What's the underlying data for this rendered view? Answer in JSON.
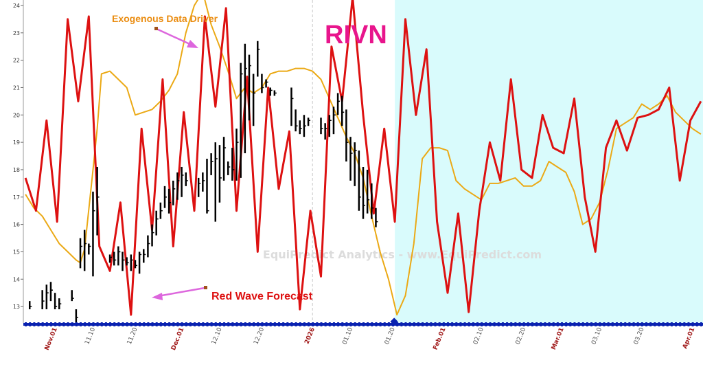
{
  "chart_data": {
    "type": "line",
    "ticker": "RIVN",
    "watermark": "EquiPredict Analytics - www.EquiPredict.com",
    "ylim": [
      12.4,
      24.2
    ],
    "yticks": [
      13,
      14,
      15,
      16,
      17,
      18,
      19,
      20,
      21,
      22,
      23,
      24
    ],
    "x_range_days": [
      -7.5,
      153.5
    ],
    "xticks": [
      {
        "label": "Nov.01",
        "day": 0,
        "major": true
      },
      {
        "label": "11.10",
        "day": 9,
        "major": false
      },
      {
        "label": "11.20",
        "day": 19,
        "major": false
      },
      {
        "label": "Dec.01",
        "day": 30,
        "major": true
      },
      {
        "label": "12.10",
        "day": 39,
        "major": false
      },
      {
        "label": "12.20",
        "day": 49,
        "major": false
      },
      {
        "label": "2026",
        "day": 61,
        "major": true
      },
      {
        "label": "01.10",
        "day": 70,
        "major": false
      },
      {
        "label": "01.20",
        "day": 80,
        "major": false
      },
      {
        "label": "Feb.01",
        "day": 92,
        "major": true
      },
      {
        "label": "02.10",
        "day": 101,
        "major": false
      },
      {
        "label": "02.20",
        "day": 111,
        "major": false
      },
      {
        "label": "Mar.01",
        "day": 120,
        "major": true
      },
      {
        "label": "03.10",
        "day": 129,
        "major": false
      },
      {
        "label": "03.20",
        "day": 139,
        "major": false
      },
      {
        "label": "Apr.01",
        "day": 151,
        "major": true
      }
    ],
    "forecast_start_day": 80.5,
    "year_divider_day": 61,
    "annotations": [
      {
        "text": "Exogenous Data Driver",
        "role": "exogenous"
      },
      {
        "text": "Red Wave Forecast",
        "role": "forecast"
      }
    ],
    "colors": {
      "red_wave": "#dd1111",
      "exogenous": "#eba915",
      "price": "#000000",
      "forecast_bg": "#d9fbfc",
      "ticker": "#e8158c",
      "arrow": "#dd66dd",
      "annotation_orange": "#ea8c10",
      "annotation_red": "#dd1111",
      "major_tick": "#a01818",
      "minor_tick": "#555555",
      "axis_marks": "#0a22b0"
    },
    "series": [
      {
        "role": "red_wave",
        "x": [
          -7,
          -4.5,
          -2,
          0.5,
          3,
          5.5,
          8,
          10.5,
          13,
          15.5,
          18,
          20.5,
          23,
          25.5,
          28,
          30.5,
          33,
          35.5,
          38,
          40.5,
          43,
          45.5,
          48,
          50.5,
          53,
          55.5,
          58,
          60.5,
          63,
          65.5,
          68,
          70.5,
          73,
          75.5,
          78,
          80.5,
          83,
          85.5,
          88,
          90.5,
          93,
          95.5,
          98,
          100.5,
          103,
          105.5,
          108,
          110.5,
          113,
          115.5,
          118,
          120.5,
          123,
          125.5,
          128,
          130.5,
          133,
          135.5,
          138,
          140.5,
          143,
          145.5,
          148,
          150.5,
          153
        ],
        "y": [
          17.7,
          16.5,
          19.8,
          16.1,
          23.5,
          20.5,
          23.6,
          15.2,
          14.3,
          16.8,
          12.7,
          19.5,
          15.8,
          21.3,
          15.2,
          20.1,
          16.5,
          23.6,
          20.3,
          23.9,
          16.5,
          21.4,
          15.0,
          21.0,
          17.3,
          19.4,
          12.9,
          16.5,
          14.1,
          22.5,
          20.5,
          24.3,
          20.0,
          16.4,
          19.5,
          16.1,
          23.5,
          20.0,
          22.4,
          16.1,
          13.5,
          16.4,
          12.8,
          16.5,
          19.0,
          17.6,
          21.3,
          18.0,
          17.7,
          20.0,
          18.8,
          18.6,
          20.6,
          17.0,
          15.0,
          18.8,
          19.8,
          18.7,
          19.9,
          20.0,
          20.2,
          21.0,
          17.6,
          19.8,
          20.5
        ]
      },
      {
        "role": "exogenous",
        "x": [
          -7,
          -5,
          -3,
          -1,
          1,
          3,
          5,
          6,
          7,
          9,
          10,
          11,
          13,
          15,
          17,
          19,
          21,
          23,
          25,
          27,
          29,
          31,
          33,
          35,
          37,
          39,
          41,
          43,
          45,
          47,
          49,
          51,
          53,
          55,
          57,
          59,
          61,
          63,
          65,
          67,
          69,
          71,
          73,
          75,
          77,
          79,
          81,
          83,
          85,
          87,
          89,
          91,
          93,
          95,
          97,
          99,
          101,
          103,
          105,
          107,
          109,
          111,
          113,
          115,
          117,
          119,
          121,
          123,
          125,
          127,
          129,
          131,
          133,
          135,
          137,
          139,
          141,
          143,
          145,
          147,
          149,
          151,
          153
        ],
        "y": [
          17.1,
          16.6,
          16.3,
          15.8,
          15.3,
          15.0,
          14.7,
          14.6,
          15.1,
          18.0,
          19.5,
          21.5,
          21.6,
          21.3,
          21.0,
          20.0,
          20.1,
          20.2,
          20.5,
          20.9,
          21.5,
          23.0,
          24.0,
          24.5,
          23.3,
          22.5,
          21.6,
          20.6,
          21.0,
          20.8,
          21.0,
          21.5,
          21.6,
          21.6,
          21.7,
          21.7,
          21.6,
          21.3,
          20.6,
          19.9,
          19.2,
          18.6,
          17.7,
          16.3,
          15.0,
          14.0,
          12.7,
          13.4,
          15.3,
          18.4,
          18.8,
          18.8,
          18.7,
          17.6,
          17.3,
          17.1,
          16.9,
          17.5,
          17.5,
          17.6,
          17.7,
          17.4,
          17.4,
          17.6,
          18.3,
          18.1,
          17.9,
          17.2,
          16.0,
          16.2,
          16.8,
          18.0,
          19.5,
          19.7,
          19.9,
          20.4,
          20.2,
          20.4,
          20.7,
          20.1,
          19.8,
          19.5,
          19.3
        ]
      },
      {
        "role": "price",
        "x": [
          -6,
          -3,
          -2,
          -1,
          0,
          1,
          4,
          5,
          6,
          7,
          8,
          9,
          10,
          13,
          14,
          15,
          16,
          17,
          18,
          19,
          20,
          21,
          22,
          23,
          24,
          25,
          26,
          27,
          28,
          29,
          30,
          31,
          34,
          35,
          36,
          37,
          38,
          39,
          40,
          41,
          42,
          43,
          44,
          45,
          46,
          47,
          48,
          49,
          50,
          51,
          52,
          56,
          57,
          58,
          59,
          60,
          63,
          64,
          65,
          66,
          67,
          68,
          69,
          70,
          71,
          72,
          73,
          74,
          75,
          76
        ],
        "high": [
          13.2,
          13.6,
          13.8,
          13.9,
          13.5,
          13.3,
          13.6,
          12.9,
          15.5,
          15.8,
          15.3,
          17.2,
          18.1,
          14.9,
          15.0,
          15.2,
          15.0,
          14.8,
          14.9,
          14.7,
          15.0,
          15.1,
          15.6,
          16.0,
          16.5,
          16.8,
          17.4,
          17.3,
          17.6,
          17.9,
          18.1,
          17.9,
          17.7,
          17.9,
          18.4,
          18.6,
          19.0,
          18.9,
          19.2,
          18.3,
          18.8,
          19.5,
          21.9,
          22.6,
          22.2,
          21.5,
          22.7,
          21.5,
          21.3,
          21.0,
          20.9,
          21.0,
          20.2,
          19.8,
          20.0,
          19.9,
          19.9,
          19.7,
          20.0,
          20.3,
          20.8,
          20.7,
          20.2,
          19.2,
          19.0,
          18.7,
          18.1,
          18.0,
          17.5,
          16.6
        ],
        "low": [
          12.9,
          12.9,
          12.9,
          13.2,
          12.9,
          12.9,
          13.2,
          12.4,
          14.4,
          14.3,
          14.9,
          14.1,
          15.6,
          14.6,
          14.5,
          14.5,
          14.3,
          14.5,
          14.3,
          14.4,
          14.2,
          14.6,
          14.8,
          15.2,
          15.6,
          16.2,
          16.6,
          16.4,
          16.7,
          16.9,
          17.0,
          17.4,
          17.0,
          17.2,
          16.4,
          17.8,
          16.1,
          16.8,
          17.6,
          17.8,
          17.6,
          17.6,
          17.7,
          18.6,
          19.8,
          19.6,
          21.4,
          20.8,
          21.0,
          20.7,
          20.7,
          19.6,
          19.4,
          19.3,
          19.2,
          19.6,
          19.3,
          19.1,
          19.2,
          19.3,
          20.0,
          19.6,
          18.3,
          17.6,
          17.4,
          16.5,
          16.2,
          16.4,
          16.2,
          15.9
        ],
        "close": [
          13.0,
          13.2,
          13.5,
          13.6,
          13.0,
          13.1,
          13.3,
          12.6,
          15.2,
          15.3,
          15.2,
          16.5,
          17.0,
          14.8,
          14.7,
          15.0,
          14.7,
          14.6,
          14.7,
          14.5,
          14.9,
          14.9,
          15.3,
          15.7,
          16.2,
          16.5,
          17.0,
          16.8,
          17.3,
          17.6,
          17.8,
          17.6,
          17.5,
          17.6,
          16.5,
          18.3,
          18.4,
          17.7,
          18.8,
          18.1,
          18.0,
          19.0,
          21.5,
          21.7,
          21.8,
          20.8,
          22.4,
          21.0,
          21.2,
          20.9,
          20.8,
          20.6,
          19.6,
          19.5,
          19.6,
          19.8,
          19.5,
          19.5,
          19.8,
          20.0,
          20.5,
          20.1,
          19.0,
          18.6,
          18.7,
          17.0,
          16.7,
          16.9,
          16.6,
          16.1
        ]
      }
    ]
  }
}
